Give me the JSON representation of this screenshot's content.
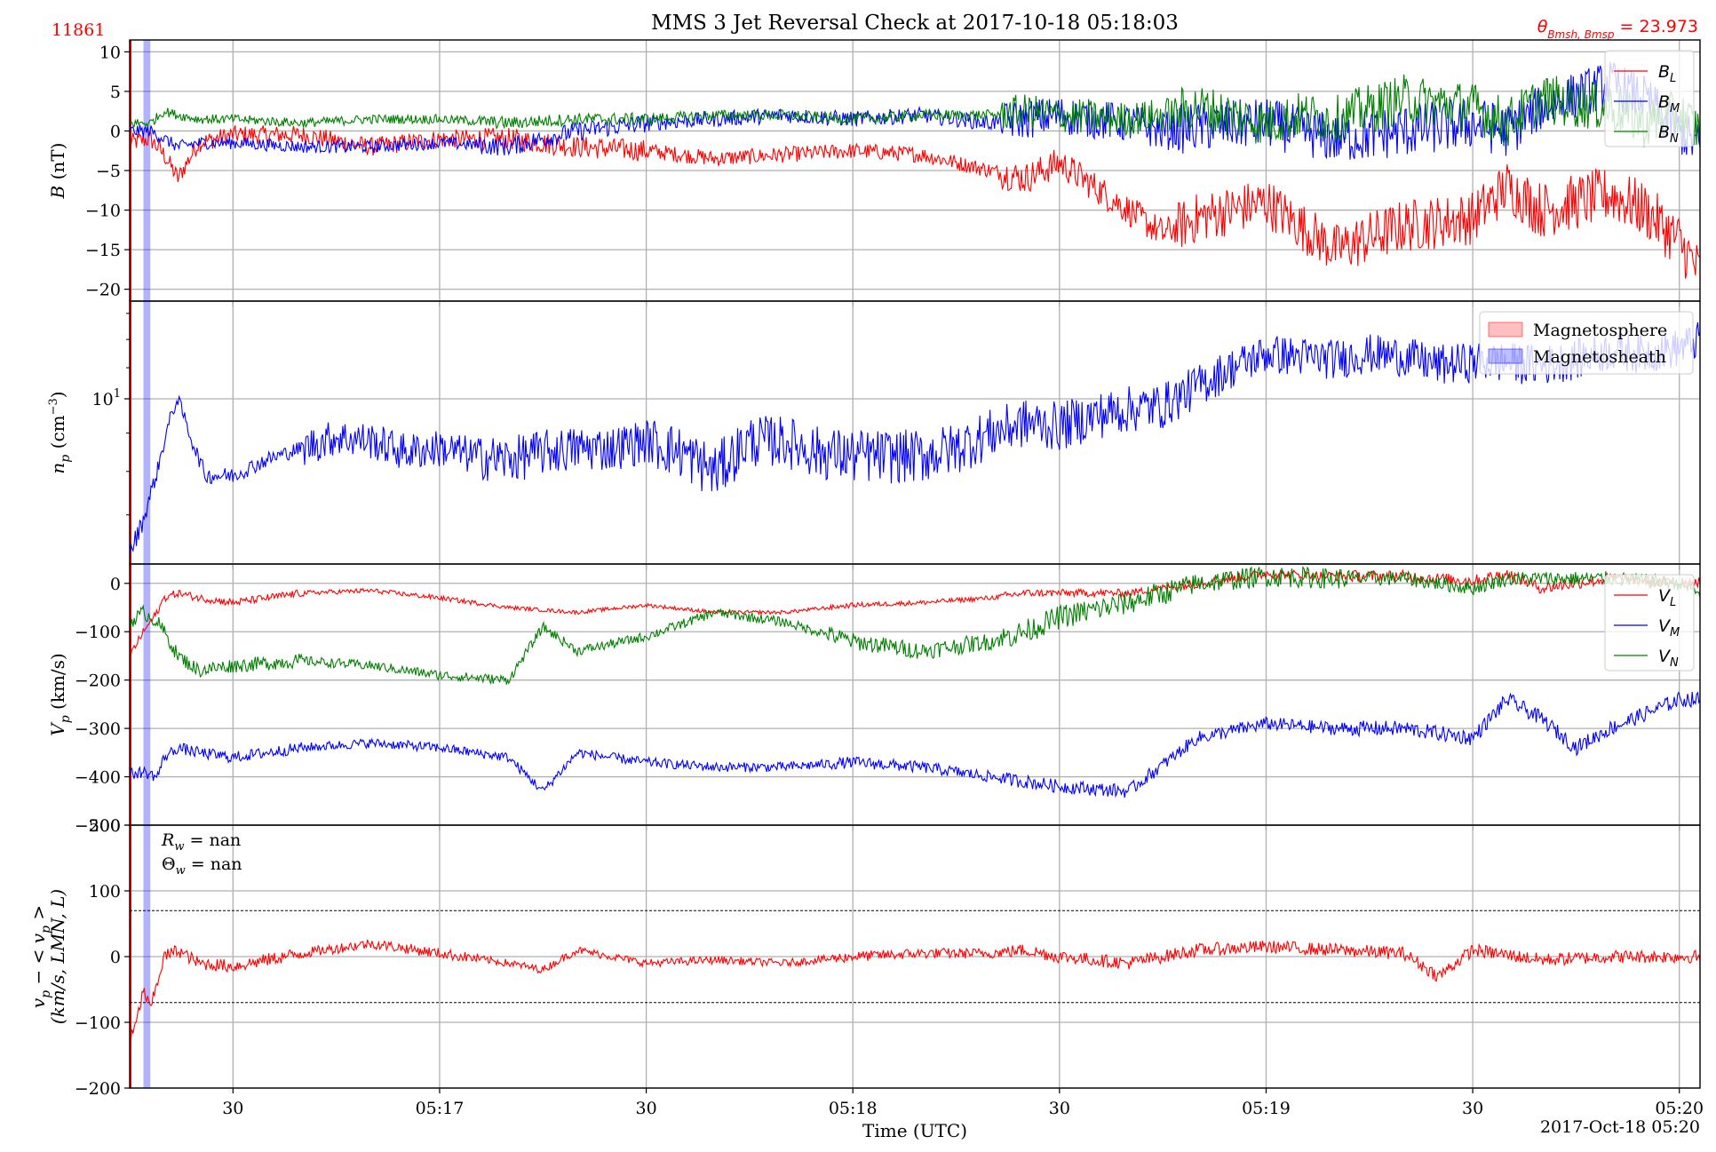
{
  "figure": {
    "title": "MMS 3 Jet Reversal Check at 2017-10-18 05:18:03",
    "corner_left": "11861",
    "corner_right": "θ_{Bmsh, Bmsp} = 23.973",
    "corner_right_main": "θ",
    "corner_right_sub": "Bmsh, Bmsp",
    "corner_right_value": " = 23.973",
    "xlabel": "Time (UTC)",
    "date_label": "2017-Oct-18 05:20",
    "colors": {
      "red": "#ff0000",
      "blue": "#0000ff",
      "green": "#008000",
      "grid": "#b0b0b0"
    }
  },
  "chart_data": [
    {
      "type": "line",
      "panel": "B",
      "ylabel": "B (nT)",
      "ylim": [
        -21.5,
        11.5
      ],
      "yticks": [
        10,
        5,
        0,
        -5,
        -10,
        -15,
        -20
      ],
      "xlim": [
        "05:16:15",
        "05:20:03"
      ],
      "xticks": [
        "05:16:30",
        "05:17:00",
        "05:17:30",
        "05:18:00",
        "05:18:30",
        "05:19:00",
        "05:19:30",
        "05:20:00"
      ],
      "xtick_labels": [
        "30",
        "05:17",
        "30",
        "05:18",
        "30",
        "05:19",
        "30",
        "05:20"
      ],
      "legend": "top-right",
      "shaded_regions": [
        {
          "name": "Magnetosheath",
          "from": "05:16:17",
          "to": "05:16:18",
          "color": "#0000ff"
        }
      ],
      "series": [
        {
          "name": "B_L",
          "label_main": "B",
          "label_sub": "L",
          "color": "#ff0000",
          "x": [
            "05:16:15",
            "05:16:18",
            "05:16:20",
            "05:16:22",
            "05:16:25",
            "05:16:30",
            "05:16:40",
            "05:16:50",
            "05:17:00",
            "05:17:10",
            "05:17:20",
            "05:17:30",
            "05:17:40",
            "05:17:50",
            "05:18:00",
            "05:18:10",
            "05:18:20",
            "05:18:25",
            "05:18:30",
            "05:18:40",
            "05:18:45",
            "05:18:50",
            "05:19:00",
            "05:19:05",
            "05:19:10",
            "05:19:20",
            "05:19:30",
            "05:19:35",
            "05:19:40",
            "05:19:50",
            "05:19:55",
            "05:20:00",
            "05:20:03"
          ],
          "y": [
            -1.5,
            -1,
            -3,
            -6,
            -1.5,
            -0.5,
            -0.5,
            -2,
            -1,
            -1,
            -2,
            -2.5,
            -3.5,
            -3,
            -2.5,
            -3,
            -5,
            -6,
            -4,
            -10,
            -13,
            -11,
            -9,
            -12,
            -15,
            -12,
            -11,
            -7,
            -10,
            -8,
            -10,
            -14,
            -18
          ]
        },
        {
          "name": "B_M",
          "label_main": "B",
          "label_sub": "M",
          "color": "#0000ff",
          "x": [
            "05:16:15",
            "05:16:18",
            "05:16:20",
            "05:16:22",
            "05:16:25",
            "05:16:30",
            "05:16:40",
            "05:16:50",
            "05:17:00",
            "05:17:10",
            "05:17:20",
            "05:17:30",
            "05:17:40",
            "05:17:50",
            "05:18:00",
            "05:18:10",
            "05:18:20",
            "05:18:25",
            "05:18:30",
            "05:18:40",
            "05:18:45",
            "05:18:50",
            "05:19:00",
            "05:19:05",
            "05:19:10",
            "05:19:20",
            "05:19:30",
            "05:19:35",
            "05:19:40",
            "05:19:50",
            "05:19:55",
            "05:20:00",
            "05:20:03"
          ],
          "y": [
            0,
            0,
            -1,
            -2,
            -1.5,
            -1.5,
            -2,
            -2,
            -1.5,
            -2,
            0,
            1,
            1.5,
            2,
            1.5,
            2,
            1,
            1.5,
            2,
            1,
            0,
            0.5,
            1,
            0,
            -1,
            0,
            1,
            0,
            3,
            6,
            4,
            0,
            -2
          ]
        },
        {
          "name": "B_N",
          "label_main": "B",
          "label_sub": "N",
          "color": "#008000",
          "x": [
            "05:16:15",
            "05:16:18",
            "05:16:20",
            "05:16:22",
            "05:16:25",
            "05:16:30",
            "05:16:40",
            "05:16:50",
            "05:17:00",
            "05:17:10",
            "05:17:20",
            "05:17:30",
            "05:17:40",
            "05:17:50",
            "05:18:00",
            "05:18:10",
            "05:18:20",
            "05:18:25",
            "05:18:30",
            "05:18:40",
            "05:18:45",
            "05:18:50",
            "05:19:00",
            "05:19:05",
            "05:19:10",
            "05:19:20",
            "05:19:30",
            "05:19:35",
            "05:19:40",
            "05:19:50",
            "05:19:55",
            "05:20:00",
            "05:20:03"
          ],
          "y": [
            1,
            1,
            2.5,
            2,
            1.5,
            1.5,
            1,
            1.5,
            1.5,
            1,
            1.5,
            1.5,
            2,
            2,
            1.5,
            2,
            2,
            2.5,
            2,
            1.5,
            2,
            3,
            1,
            2,
            1.5,
            4,
            3,
            1,
            4,
            3,
            1,
            2,
            0
          ]
        }
      ]
    },
    {
      "type": "line",
      "panel": "np",
      "ylabel": "n_p (cm^-3)",
      "yscale": "log",
      "ylim": [
        6.02,
        13.5
      ],
      "yticks": [
        10
      ],
      "ytick_labels": [
        "10^1"
      ],
      "xlim": [
        "05:16:15",
        "05:20:03"
      ],
      "legend": "top-right",
      "legend_entries": [
        {
          "label": "Magnetosphere",
          "color": "#ff0000"
        },
        {
          "label": "Magnetosheath",
          "color": "#0000ff"
        }
      ],
      "series": [
        {
          "name": "n_p",
          "color": "#0000ff",
          "x": [
            "05:16:15",
            "05:16:17",
            "05:16:19",
            "05:16:21",
            "05:16:22",
            "05:16:24",
            "05:16:26",
            "05:16:30",
            "05:16:35",
            "05:16:40",
            "05:16:45",
            "05:16:50",
            "05:16:55",
            "05:17:00",
            "05:17:05",
            "05:17:10",
            "05:17:15",
            "05:17:20",
            "05:17:25",
            "05:17:30",
            "05:17:35",
            "05:17:40",
            "05:17:45",
            "05:17:50",
            "05:17:55",
            "05:18:00",
            "05:18:05",
            "05:18:10",
            "05:18:15",
            "05:18:20",
            "05:18:25",
            "05:18:30",
            "05:18:35",
            "05:18:40",
            "05:18:45",
            "05:18:50",
            "05:18:55",
            "05:19:00",
            "05:19:05",
            "05:19:10",
            "05:19:15",
            "05:19:20",
            "05:19:25",
            "05:19:30",
            "05:19:35",
            "05:19:40",
            "05:19:45",
            "05:19:50",
            "05:19:55",
            "05:20:00",
            "05:20:03"
          ],
          "y": [
            6.2,
            6.9,
            8.0,
            9.5,
            10.0,
            8.8,
            7.9,
            7.9,
            8.3,
            8.6,
            8.9,
            8.8,
            8.5,
            8.6,
            8.4,
            8.3,
            8.5,
            8.6,
            8.6,
            8.8,
            8.5,
            8.0,
            8.8,
            8.8,
            8.5,
            8.4,
            8.4,
            8.4,
            8.6,
            9.0,
            9.3,
            9.2,
            9.5,
            9.7,
            9.8,
            10.4,
            11.0,
            11.5,
            11.4,
            11.3,
            11.5,
            11.4,
            11.1,
            11.2,
            11.2,
            11.1,
            11.3,
            11.6,
            11.5,
            11.7,
            12.0
          ]
        }
      ]
    },
    {
      "type": "line",
      "panel": "Vp",
      "ylabel": "V_p (km/s)",
      "ylim": [
        -500,
        40
      ],
      "yticks": [
        0,
        -100,
        -200,
        -300,
        -400,
        -500
      ],
      "xlim": [
        "05:16:15",
        "05:20:03"
      ],
      "legend": "top-right",
      "series": [
        {
          "name": "V_L",
          "label_main": "V",
          "label_sub": "L",
          "color": "#ff0000",
          "x": [
            "05:16:15",
            "05:16:17",
            "05:16:19",
            "05:16:20",
            "05:16:22",
            "05:16:25",
            "05:16:30",
            "05:16:40",
            "05:16:50",
            "05:17:00",
            "05:17:10",
            "05:17:20",
            "05:17:30",
            "05:17:40",
            "05:17:50",
            "05:18:00",
            "05:18:10",
            "05:18:20",
            "05:18:25",
            "05:18:30",
            "05:18:40",
            "05:18:50",
            "05:19:00",
            "05:19:10",
            "05:19:20",
            "05:19:30",
            "05:19:35",
            "05:19:40",
            "05:19:50",
            "05:20:00",
            "05:20:03"
          ],
          "y": [
            -150,
            -100,
            -60,
            -30,
            -20,
            -30,
            -40,
            -20,
            -15,
            -30,
            -50,
            -60,
            -45,
            -60,
            -60,
            -45,
            -40,
            -30,
            -20,
            -20,
            -20,
            0,
            20,
            15,
            15,
            5,
            20,
            -10,
            10,
            0,
            5
          ]
        },
        {
          "name": "V_M",
          "label_main": "V",
          "label_sub": "M",
          "color": "#0000ff",
          "x": [
            "05:16:15",
            "05:16:17",
            "05:16:19",
            "05:16:20",
            "05:16:22",
            "05:16:25",
            "05:16:30",
            "05:16:40",
            "05:16:50",
            "05:17:00",
            "05:17:10",
            "05:17:15",
            "05:17:20",
            "05:17:30",
            "05:17:40",
            "05:17:50",
            "05:18:00",
            "05:18:10",
            "05:18:20",
            "05:18:25",
            "05:18:30",
            "05:18:40",
            "05:18:50",
            "05:19:00",
            "05:19:10",
            "05:19:20",
            "05:19:30",
            "05:19:35",
            "05:19:40",
            "05:19:45",
            "05:19:50",
            "05:20:00",
            "05:20:03"
          ],
          "y": [
            -395,
            -390,
            -400,
            -360,
            -340,
            -350,
            -360,
            -340,
            -330,
            -340,
            -360,
            -430,
            -350,
            -370,
            -380,
            -380,
            -370,
            -380,
            -400,
            -410,
            -420,
            -430,
            -320,
            -290,
            -300,
            -300,
            -320,
            -240,
            -280,
            -340,
            -300,
            -240,
            -240
          ]
        },
        {
          "name": "V_N",
          "label_main": "V",
          "label_sub": "N",
          "color": "#008000",
          "x": [
            "05:16:15",
            "05:16:17",
            "05:16:19",
            "05:16:20",
            "05:16:22",
            "05:16:25",
            "05:16:30",
            "05:16:40",
            "05:16:50",
            "05:17:00",
            "05:17:10",
            "05:17:15",
            "05:17:20",
            "05:17:30",
            "05:17:40",
            "05:17:50",
            "05:18:00",
            "05:18:10",
            "05:18:20",
            "05:18:25",
            "05:18:30",
            "05:18:40",
            "05:18:50",
            "05:19:00",
            "05:19:10",
            "05:19:20",
            "05:19:30",
            "05:19:35",
            "05:19:40",
            "05:19:50",
            "05:20:00",
            "05:20:03"
          ],
          "y": [
            -80,
            -60,
            -80,
            -100,
            -150,
            -180,
            -170,
            -160,
            -170,
            -190,
            -200,
            -90,
            -140,
            -110,
            -60,
            -80,
            -120,
            -140,
            -120,
            -100,
            -70,
            -40,
            0,
            15,
            10,
            10,
            -10,
            10,
            10,
            10,
            0,
            -20
          ]
        }
      ]
    },
    {
      "type": "line",
      "panel": "dVp",
      "ylabel": "v_p − < v_p > (km/s, LMN, L)",
      "ylim": [
        -200,
        200
      ],
      "yticks": [
        200,
        100,
        0,
        -100,
        -200
      ],
      "xlim": [
        "05:16:15",
        "05:20:03"
      ],
      "annotations": [
        "R_w = nan",
        "Θ_w = nan"
      ],
      "annotation_rw_main": "R",
      "annotation_rw_sub": "w",
      "annotation_rw_value": " = nan",
      "annotation_thw_main": "Θ",
      "annotation_thw_sub": "w",
      "annotation_thw_value": " = nan",
      "hlines": [
        70,
        -70
      ],
      "series": [
        {
          "name": "v_p − <v_p>",
          "color": "#ff0000",
          "x": [
            "05:16:15",
            "05:16:16",
            "05:16:17",
            "05:16:18",
            "05:16:19",
            "05:16:20",
            "05:16:22",
            "05:16:25",
            "05:16:30",
            "05:16:40",
            "05:16:50",
            "05:17:00",
            "05:17:10",
            "05:17:15",
            "05:17:20",
            "05:17:30",
            "05:17:40",
            "05:17:50",
            "05:18:00",
            "05:18:10",
            "05:18:20",
            "05:18:25",
            "05:18:30",
            "05:18:40",
            "05:18:50",
            "05:19:00",
            "05:19:10",
            "05:19:20",
            "05:19:25",
            "05:19:30",
            "05:19:40",
            "05:19:50",
            "05:20:00",
            "05:20:03"
          ],
          "y": [
            -130,
            -100,
            -50,
            -80,
            -40,
            0,
            10,
            -10,
            -15,
            5,
            20,
            5,
            -10,
            -20,
            10,
            -10,
            -5,
            -10,
            0,
            5,
            5,
            10,
            0,
            -10,
            10,
            15,
            10,
            5,
            -30,
            10,
            -5,
            0,
            0,
            0
          ]
        }
      ]
    }
  ]
}
